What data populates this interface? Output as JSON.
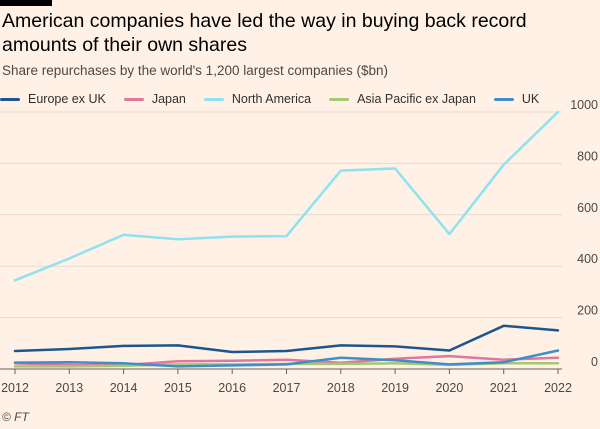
{
  "header": {
    "title": "American companies have led the way in buying back record amounts of their own shares",
    "subtitle": "Share repurchases by the world's 1,200 largest companies ($bn)"
  },
  "source": "© FT",
  "chart_data": {
    "type": "line",
    "title": "American companies have led the way in buying back record amounts of their own shares",
    "subtitle": "Share repurchases by the world's 1,200 largest companies ($bn)",
    "x": [
      2012,
      2013,
      2014,
      2015,
      2016,
      2017,
      2018,
      2019,
      2020,
      2021,
      2022
    ],
    "ylim": [
      0,
      1000
    ],
    "yticks": [
      0,
      200,
      400,
      600,
      800,
      1000
    ],
    "grid": true,
    "legend_position": "top",
    "series": [
      {
        "name": "Europe ex UK",
        "color": "#1e558c",
        "values": [
          70,
          78,
          90,
          92,
          66,
          70,
          92,
          88,
          72,
          168,
          150
        ]
      },
      {
        "name": "Japan",
        "color": "#e176a1",
        "values": [
          22,
          15,
          15,
          30,
          32,
          36,
          24,
          40,
          50,
          36,
          44
        ]
      },
      {
        "name": "North America",
        "color": "#8fe2f1",
        "values": [
          345,
          430,
          522,
          505,
          515,
          517,
          772,
          780,
          525,
          795,
          1000
        ]
      },
      {
        "name": "Asia Pacific ex Japan",
        "color": "#a5c96f",
        "values": [
          10,
          10,
          12,
          18,
          18,
          20,
          20,
          22,
          16,
          22,
          22
        ]
      },
      {
        "name": "UK",
        "color": "#3f8ec9",
        "values": [
          25,
          26,
          22,
          10,
          14,
          18,
          44,
          34,
          18,
          26,
          72
        ]
      }
    ]
  }
}
